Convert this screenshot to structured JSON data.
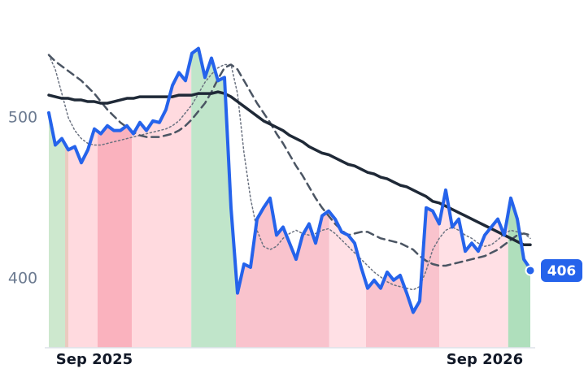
{
  "chart_data": {
    "type": "line",
    "x": [
      0,
      1,
      2,
      3,
      4,
      5,
      6,
      7,
      8,
      9,
      10,
      11,
      12,
      13,
      14,
      15,
      16,
      17,
      18,
      19,
      20,
      21,
      22,
      23,
      24,
      25,
      26,
      27,
      28,
      29,
      30,
      31,
      32,
      33,
      34,
      35,
      36,
      37,
      38,
      39,
      40,
      41,
      42,
      43,
      44,
      45,
      46,
      47,
      48,
      49,
      50,
      51,
      52,
      53,
      54,
      55,
      56,
      57,
      58,
      59,
      60,
      61,
      62,
      63,
      64,
      65,
      66,
      67,
      68,
      69,
      70,
      71,
      72,
      73,
      74
    ],
    "xlim": [
      0,
      74
    ],
    "xticks": [
      {
        "value": 7,
        "label": "Sep 2025"
      },
      {
        "value": 67,
        "label": "Sep 2026"
      }
    ],
    "ylim": [
      357,
      560
    ],
    "yticks": [
      400,
      500
    ],
    "series": [
      {
        "color": "#2563eb",
        "width": 4,
        "dash": "none",
        "values": [
          503,
          483,
          487,
          480,
          482,
          472,
          480,
          493,
          490,
          495,
          492,
          492,
          495,
          490,
          497,
          492,
          498,
          497,
          505,
          520,
          528,
          523,
          540,
          543,
          525,
          537,
          523,
          525,
          444,
          391,
          409,
          407,
          437,
          444,
          450,
          427,
          432,
          422,
          412,
          427,
          434,
          422,
          439,
          442,
          437,
          429,
          427,
          422,
          407,
          394,
          399,
          394,
          404,
          399,
          402,
          391,
          379,
          386,
          444,
          442,
          434,
          455,
          432,
          437,
          417,
          422,
          417,
          427,
          432,
          437,
          427,
          450,
          437,
          412,
          406
        ]
      },
      {
        "color": "#1f2937",
        "width": 3.5,
        "dash": "none",
        "values": [
          514,
          513,
          512,
          512,
          511,
          511,
          510,
          510,
          509,
          509,
          510,
          511,
          512,
          512,
          513,
          513,
          513,
          513,
          513,
          513,
          514,
          514,
          514,
          515,
          515,
          515,
          516,
          515,
          513,
          510,
          507,
          504,
          501,
          498,
          496,
          494,
          492,
          489,
          487,
          485,
          482,
          480,
          478,
          477,
          475,
          473,
          471,
          470,
          468,
          466,
          465,
          463,
          462,
          460,
          458,
          457,
          455,
          453,
          451,
          448,
          447,
          445,
          443,
          441,
          439,
          437,
          435,
          433,
          431,
          429,
          427,
          425,
          423,
          421,
          421
        ]
      },
      {
        "color": "#4b5563",
        "width": 2.5,
        "dash": "9 6",
        "values": [
          539,
          535,
          532,
          529,
          526,
          523,
          519,
          515,
          510,
          505,
          501,
          497,
          494,
          491,
          489,
          488,
          488,
          488,
          489,
          490,
          492,
          495,
          499,
          504,
          509,
          516,
          524,
          531,
          533,
          530,
          523,
          516,
          509,
          503,
          497,
          490,
          484,
          477,
          470,
          464,
          457,
          450,
          444,
          439,
          434,
          430,
          427,
          428,
          429,
          429,
          427,
          425,
          424,
          423,
          422,
          420,
          418,
          414,
          411,
          409,
          408,
          408,
          409,
          410,
          411,
          412,
          413,
          414,
          416,
          418,
          421,
          424,
          427,
          428,
          427
        ]
      },
      {
        "color": "#6b7280",
        "width": 1.5,
        "dash": "2 3",
        "values": [
          539,
          530,
          515,
          500,
          492,
          487,
          484,
          483,
          483,
          484,
          485,
          486,
          487,
          488,
          489,
          490,
          491,
          492,
          493,
          495,
          498,
          503,
          508,
          515,
          522,
          527,
          531,
          533,
          533,
          515,
          478,
          450,
          430,
          420,
          418,
          420,
          425,
          428,
          430,
          428,
          427,
          428,
          430,
          431,
          428,
          424,
          420,
          416,
          412,
          408,
          404,
          401,
          398,
          396,
          395,
          394,
          393,
          395,
          405,
          418,
          425,
          430,
          432,
          430,
          427,
          425,
          422,
          420,
          421,
          424,
          428,
          430,
          429,
          428,
          425
        ]
      }
    ],
    "bands": [
      {
        "start": 0,
        "end": 2.5,
        "color": "#c8e6c9"
      },
      {
        "start": 2.5,
        "end": 3,
        "color": "#e8c4b8"
      },
      {
        "start": 3,
        "end": 7.5,
        "color": "#ffd6dc"
      },
      {
        "start": 7.5,
        "end": 12.75,
        "color": "#f9aab7"
      },
      {
        "start": 12.75,
        "end": 21.9,
        "color": "#ffd6dc"
      },
      {
        "start": 21.9,
        "end": 28.75,
        "color": "#b9e2c4"
      },
      {
        "start": 28.75,
        "end": 43.1,
        "color": "#f8bcc8"
      },
      {
        "start": 43.1,
        "end": 48.75,
        "color": "#ffdde2"
      },
      {
        "start": 48.75,
        "end": 60,
        "color": "#f8bcc8"
      },
      {
        "start": 60,
        "end": 70.6,
        "color": "#ffdde2"
      },
      {
        "start": 70.6,
        "end": 74,
        "color": "#a6dcb5"
      }
    ]
  }
}
